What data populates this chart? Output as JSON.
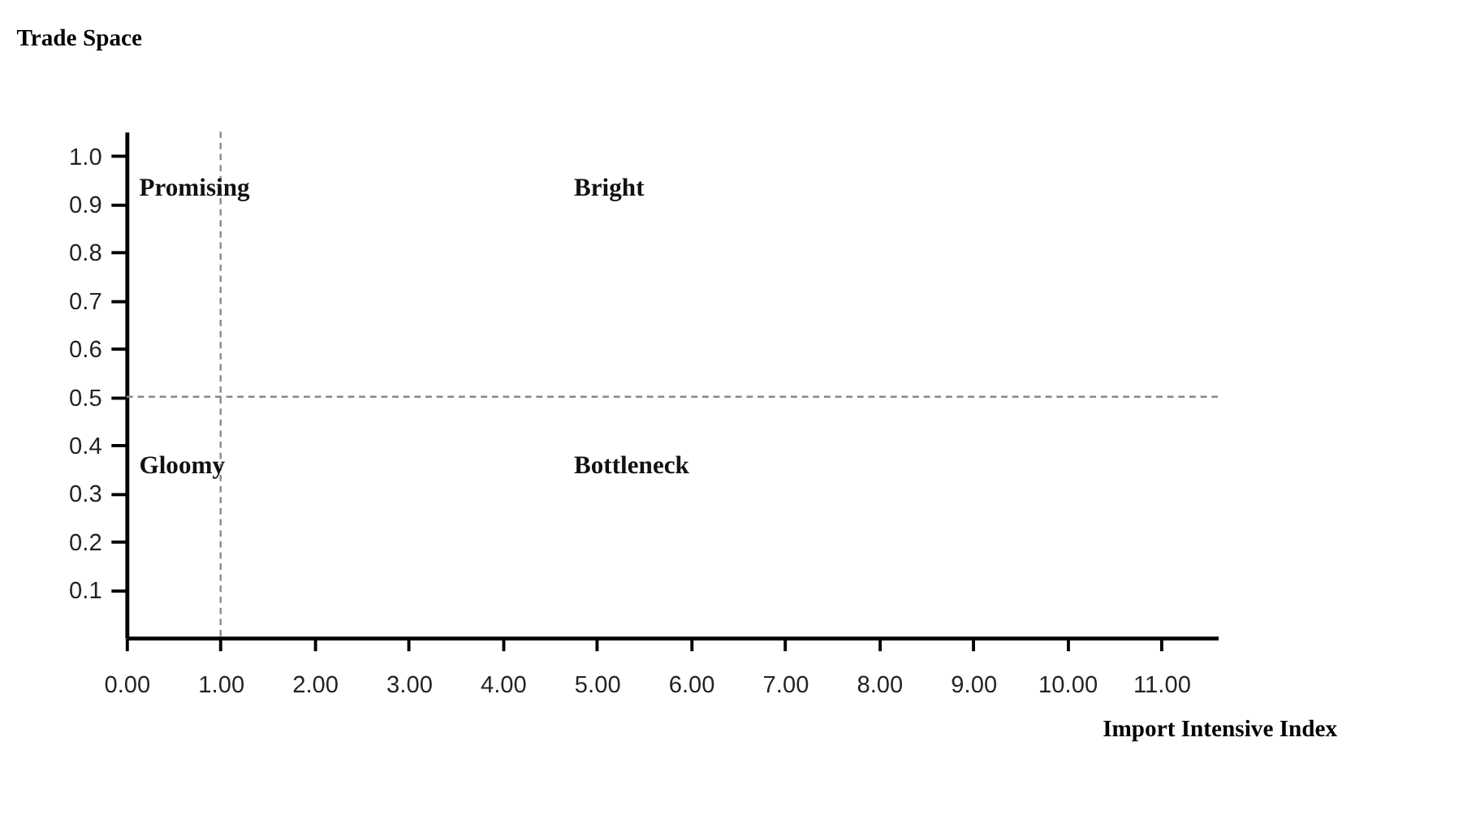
{
  "chart_data": {
    "type": "scatter",
    "xlabel": "Import Intensive Index",
    "ylabel": "Trade Space",
    "xlim": [
      0,
      11.6
    ],
    "ylim": [
      0,
      1.05
    ],
    "xticks": [
      {
        "value": 0,
        "label": "0.00"
      },
      {
        "value": 1,
        "label": "1.00"
      },
      {
        "value": 2,
        "label": "2.00"
      },
      {
        "value": 3,
        "label": "3.00"
      },
      {
        "value": 4,
        "label": "4.00"
      },
      {
        "value": 5,
        "label": "5.00"
      },
      {
        "value": 6,
        "label": "6.00"
      },
      {
        "value": 7,
        "label": "7.00"
      },
      {
        "value": 8,
        "label": "8.00"
      },
      {
        "value": 9,
        "label": "9.00"
      },
      {
        "value": 10,
        "label": "10.00"
      },
      {
        "value": 11,
        "label": "11.00"
      }
    ],
    "yticks": [
      0.1,
      0.2,
      0.3,
      0.4,
      0.5,
      0.6,
      0.7,
      0.8,
      0.9,
      {
        "value": 1.0,
        "label": "1.0"
      }
    ],
    "ref_lines": [
      {
        "axis": "x",
        "value": 1,
        "label": null,
        "color": "#888888",
        "line_style": "dashed"
      },
      {
        "axis": "y",
        "value": 0.5,
        "label": null,
        "color": "#888888",
        "line_style": "dashed"
      }
    ],
    "annotations": [
      "Promising",
      "Bright",
      "Gloomy",
      "Bottleneck"
    ],
    "grid": false
  }
}
